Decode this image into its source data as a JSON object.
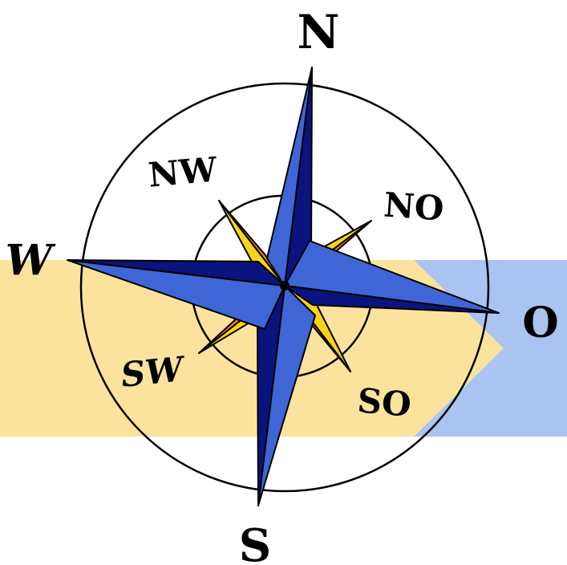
{
  "compass": {
    "labels": {
      "n": "N",
      "s": "S",
      "w": "W",
      "o": "O",
      "nw": "NW",
      "no": "NO",
      "sw": "SW",
      "so": "SO"
    },
    "colors": {
      "band_left": "#fce39d",
      "band_right": "#a9c4f0",
      "cardinal_light": "#3e66d6",
      "cardinal_dark": "#0a137e",
      "intercardinal_light": "#fbd316",
      "intercardinal_dark": "#f48410",
      "stroke": "#000000"
    }
  }
}
